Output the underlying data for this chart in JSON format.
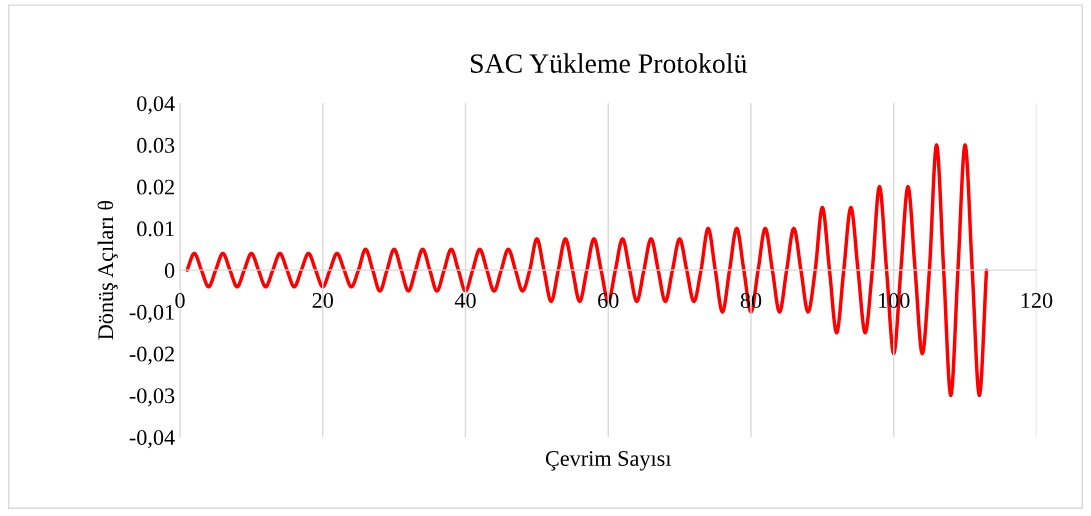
{
  "chart_data": {
    "type": "line",
    "title": "SAC Yükleme Protokolü",
    "xlabel": "Çevrim Sayısı",
    "ylabel": "Dönüş Açıları θ",
    "x": [
      1,
      2,
      3,
      4,
      5,
      6,
      7,
      8,
      9,
      10,
      11,
      12,
      13,
      14,
      15,
      16,
      17,
      18,
      19,
      20,
      21,
      22,
      23,
      24,
      25,
      26,
      27,
      28,
      29,
      30,
      31,
      32,
      33,
      34,
      35,
      36,
      37,
      38,
      39,
      40,
      41,
      42,
      43,
      44,
      45,
      46,
      47,
      48,
      49,
      50,
      51,
      52,
      53,
      54,
      55,
      56,
      57,
      58,
      59,
      60,
      61,
      62,
      63,
      64,
      65,
      66,
      67,
      68,
      69,
      70,
      71,
      72,
      73,
      74,
      75,
      76,
      77,
      78,
      79,
      80,
      81,
      82,
      83,
      84,
      85,
      86,
      87,
      88,
      89,
      90,
      91,
      92,
      93,
      94,
      95,
      96,
      97,
      98,
      99,
      100,
      101,
      102,
      103,
      104,
      105,
      106,
      107,
      108,
      109,
      110,
      111,
      112,
      113
    ],
    "series": [
      {
        "color": "#ff0000",
        "values": [
          0,
          0.004,
          0,
          -0.004,
          0,
          0.004,
          0,
          -0.004,
          0,
          0.004,
          0,
          -0.004,
          0,
          0.004,
          0,
          -0.004,
          0,
          0.004,
          0,
          -0.004,
          0,
          0.004,
          0,
          -0.004,
          0,
          0.005,
          0,
          -0.005,
          0,
          0.005,
          0,
          -0.005,
          0,
          0.005,
          0,
          -0.005,
          0,
          0.005,
          0,
          -0.005,
          0,
          0.005,
          0,
          -0.005,
          0,
          0.005,
          0,
          -0.005,
          0,
          0.0075,
          0,
          -0.0075,
          0,
          0.0075,
          0,
          -0.0075,
          0,
          0.0075,
          0,
          -0.0075,
          0,
          0.0075,
          0,
          -0.0075,
          0,
          0.0075,
          0,
          -0.0075,
          0,
          0.0075,
          0,
          -0.0075,
          0,
          0.01,
          0,
          -0.01,
          0,
          0.01,
          0,
          -0.01,
          0,
          0.01,
          0,
          -0.01,
          0,
          0.01,
          0,
          -0.01,
          0,
          0.015,
          0,
          -0.015,
          0,
          0.015,
          0,
          -0.015,
          0,
          0.02,
          0,
          -0.02,
          0,
          0.02,
          0,
          -0.02,
          0,
          0.03,
          0,
          -0.03,
          0,
          0.03,
          0,
          -0.03,
          0
        ]
      }
    ],
    "xlim": [
      0,
      120
    ],
    "xticks": [
      0,
      20,
      40,
      60,
      80,
      100,
      120
    ],
    "ylim": [
      -0.04,
      0.04
    ],
    "yticks": [
      {
        "value": 0.04,
        "label": "0,04"
      },
      {
        "value": 0.03,
        "label": "0.03"
      },
      {
        "value": 0.02,
        "label": "0.02"
      },
      {
        "value": 0.01,
        "label": "0.01"
      },
      {
        "value": 0,
        "label": "0"
      },
      {
        "value": -0.01,
        "label": "-0,01"
      },
      {
        "value": -0.02,
        "label": "-0,02"
      },
      {
        "value": -0.03,
        "label": "-0,03"
      },
      {
        "value": -0.04,
        "label": "-0,04"
      }
    ],
    "grid": "x",
    "marker": "none",
    "line_style": "solid",
    "legend": false
  }
}
